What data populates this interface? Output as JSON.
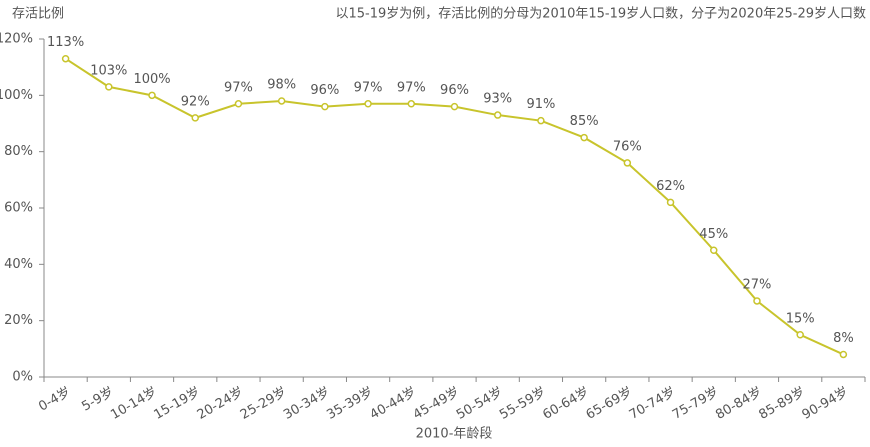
{
  "chart_data": {
    "type": "line",
    "subtitle": "以15-19岁为例，存活比例的分母为2010年15-19岁人口数，分子为2020年25-29岁人口数",
    "y_label": "存活比例",
    "x_label": "2010-年龄段",
    "categories": [
      "0-4岁",
      "5-9岁",
      "10-14岁",
      "15-19岁",
      "20-24岁",
      "25-29岁",
      "30-34岁",
      "35-39岁",
      "40-44岁",
      "45-49岁",
      "50-54岁",
      "55-59岁",
      "60-64岁",
      "65-69岁",
      "70-74岁",
      "75-79岁",
      "80-84岁",
      "85-89岁",
      "90-94岁"
    ],
    "series": [
      {
        "color": "#c8c42c",
        "values": [
          113,
          103,
          100,
          92,
          97,
          98,
          96,
          97,
          97,
          96,
          93,
          91,
          85,
          76,
          62,
          45,
          27,
          15,
          8
        ],
        "value_labels": [
          "113%",
          "103%",
          "100%",
          "92%",
          "97%",
          "98%",
          "96%",
          "97%",
          "97%",
          "96%",
          "93%",
          "91%",
          "85%",
          "76%",
          "62%",
          "45%",
          "27%",
          "15%",
          "8%"
        ]
      }
    ],
    "ylim": [
      0,
      120
    ],
    "yticks": [
      {
        "value": 0,
        "label": "0%"
      },
      {
        "value": 20,
        "label": "20%"
      },
      {
        "value": 40,
        "label": "40%"
      },
      {
        "value": 60,
        "label": "60%"
      },
      {
        "value": 80,
        "label": "80%"
      },
      {
        "value": 100,
        "label": "100%"
      },
      {
        "value": 120,
        "label": "120%"
      }
    ]
  }
}
